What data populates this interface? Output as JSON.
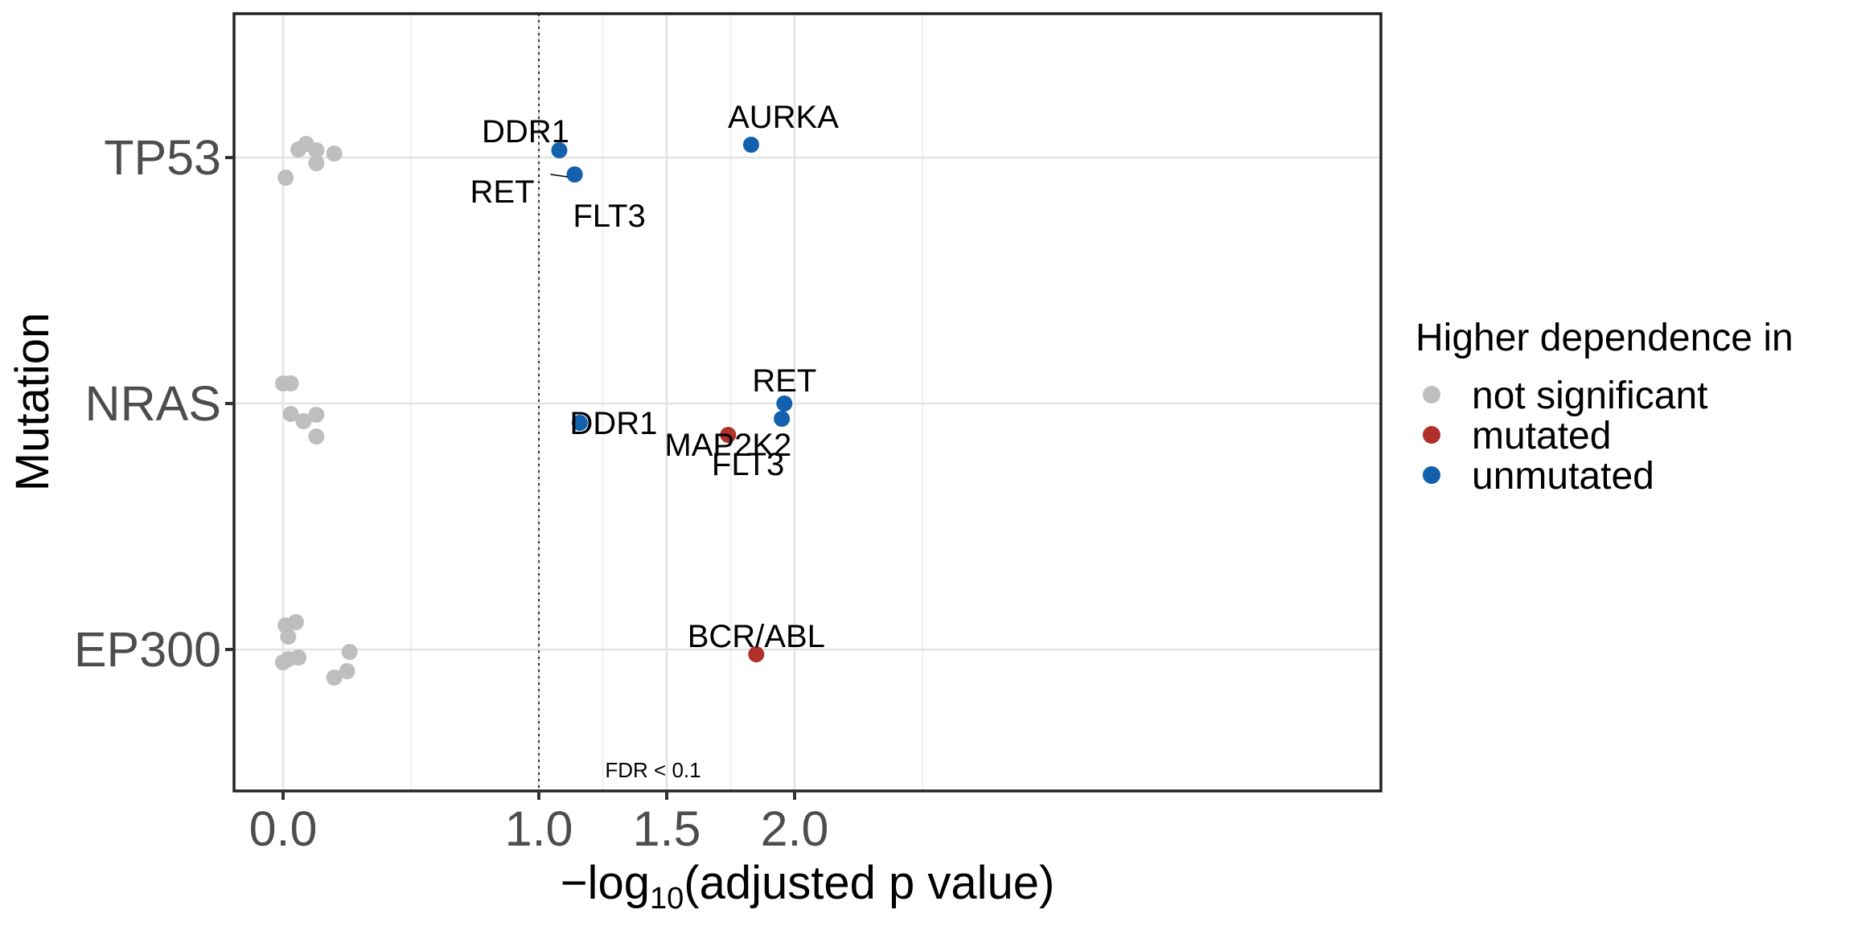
{
  "chart_data": {
    "type": "scatter",
    "xlabel_prefix": "−log",
    "xlabel_sub": "10",
    "xlabel_suffix": "(adjusted p value)",
    "ylabel": "Mutation",
    "categories": [
      "TP53",
      "NRAS",
      "EP300"
    ],
    "x_ticks": [
      "0.0",
      "1.0",
      "1.5",
      "2.0"
    ],
    "threshold_x": 1.0,
    "threshold_label": "FDR < 0.1",
    "grid": true,
    "legend": {
      "title": "Higher dependence in",
      "position": "right",
      "entries": [
        {
          "key": "ns",
          "label": "not significant",
          "color": "#bebebe"
        },
        {
          "key": "mut",
          "label": "mutated",
          "color": "#b2302c"
        },
        {
          "key": "unmut",
          "label": "unmutated",
          "color": "#1361ad"
        }
      ]
    },
    "points": [
      {
        "category": "TP53",
        "x": 0.09,
        "group": "ns"
      },
      {
        "category": "TP53",
        "x": 0.06,
        "group": "ns"
      },
      {
        "category": "TP53",
        "x": 0.13,
        "group": "ns"
      },
      {
        "category": "TP53",
        "x": 0.13,
        "group": "ns"
      },
      {
        "category": "TP53",
        "x": 0.2,
        "group": "ns"
      },
      {
        "category": "TP53",
        "x": 0.01,
        "group": "ns"
      },
      {
        "category": "TP53",
        "x": 1.08,
        "group": "unmut",
        "label": "DDR1"
      },
      {
        "category": "TP53",
        "x": 1.14,
        "group": "unmut",
        "label": "RET"
      },
      {
        "category": "TP53",
        "x": 1.14,
        "group": "unmut",
        "label": "FLT3"
      },
      {
        "category": "TP53",
        "x": 1.83,
        "group": "unmut",
        "label": "AURKA"
      },
      {
        "category": "NRAS",
        "x": 0.0,
        "group": "ns"
      },
      {
        "category": "NRAS",
        "x": 0.03,
        "group": "ns"
      },
      {
        "category": "NRAS",
        "x": 0.03,
        "group": "ns"
      },
      {
        "category": "NRAS",
        "x": 0.08,
        "group": "ns"
      },
      {
        "category": "NRAS",
        "x": 0.13,
        "group": "ns"
      },
      {
        "category": "NRAS",
        "x": 0.13,
        "group": "ns"
      },
      {
        "category": "NRAS",
        "x": 1.16,
        "group": "unmut",
        "label": "DDR1"
      },
      {
        "category": "NRAS",
        "x": 1.74,
        "group": "mut",
        "label": "MAP2K2"
      },
      {
        "category": "NRAS",
        "x": 1.96,
        "group": "unmut",
        "label": "RET"
      },
      {
        "category": "NRAS",
        "x": 1.95,
        "group": "unmut",
        "label": "FLT3"
      },
      {
        "category": "EP300",
        "x": 0.01,
        "group": "ns"
      },
      {
        "category": "EP300",
        "x": 0.05,
        "group": "ns"
      },
      {
        "category": "EP300",
        "x": 0.02,
        "group": "ns"
      },
      {
        "category": "EP300",
        "x": 0.0,
        "group": "ns"
      },
      {
        "category": "EP300",
        "x": 0.02,
        "group": "ns"
      },
      {
        "category": "EP300",
        "x": 0.06,
        "group": "ns"
      },
      {
        "category": "EP300",
        "x": 0.25,
        "group": "ns"
      },
      {
        "category": "EP300",
        "x": 0.26,
        "group": "ns"
      },
      {
        "category": "EP300",
        "x": 0.2,
        "group": "ns"
      },
      {
        "category": "EP300",
        "x": 1.85,
        "group": "mut",
        "label": "BCR/ABL"
      }
    ]
  }
}
